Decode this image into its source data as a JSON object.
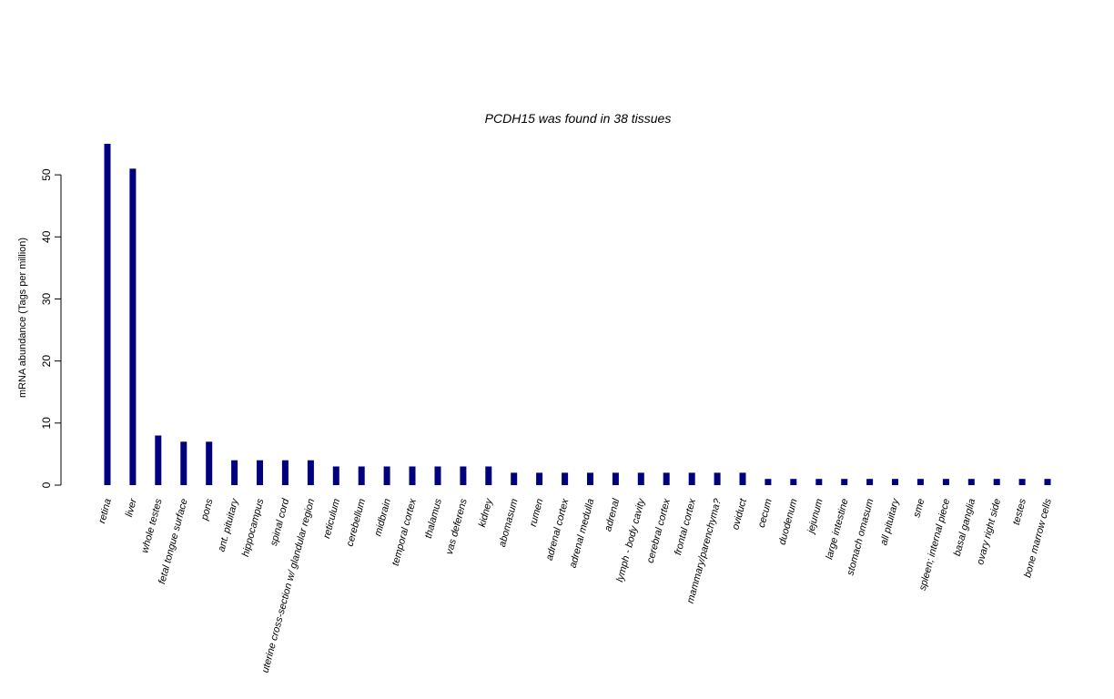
{
  "chart_data": {
    "type": "bar",
    "title": "PCDH15  was found in  38  tissues",
    "xlabel": "",
    "ylabel": "mRNA abundance (Tags per million)",
    "ylim": [
      0,
      55
    ],
    "yticks": [
      0,
      10,
      20,
      30,
      40,
      50
    ],
    "grid": false,
    "bar_color": "#00007f",
    "categories": [
      "retina",
      "liver",
      "whole testes",
      "fetal tongue surface",
      "pons",
      "ant. pituitary",
      "hippocampus",
      "spinal cord",
      "uterine cross-section w/ glandular region",
      "reticulum",
      "cerebellum",
      "midbrain",
      "temporal cortex",
      "thalamus",
      "vas deferens",
      "kidney",
      "abomasum",
      "rumen",
      "adrenal cortex",
      "adrenal medulla",
      "adrenal",
      "lymph - body cavity",
      "cerebral cortex",
      "frontal cortex",
      "mammary/parenchyma?",
      "oviduct",
      "cecum",
      "duodenum",
      "jejunum",
      "large intestine",
      "stomach omasum",
      "all pituitary",
      "sme",
      "spleen; internal piece",
      "basal ganglia",
      "ovary right side",
      "testes",
      "bone marrow cells"
    ],
    "values": [
      55,
      51,
      8,
      7,
      7,
      4,
      4,
      4,
      4,
      3,
      3,
      3,
      3,
      3,
      3,
      3,
      2,
      2,
      2,
      2,
      2,
      2,
      2,
      2,
      2,
      2,
      1,
      1,
      1,
      1,
      1,
      1,
      1,
      1,
      1,
      1,
      1,
      1
    ]
  }
}
